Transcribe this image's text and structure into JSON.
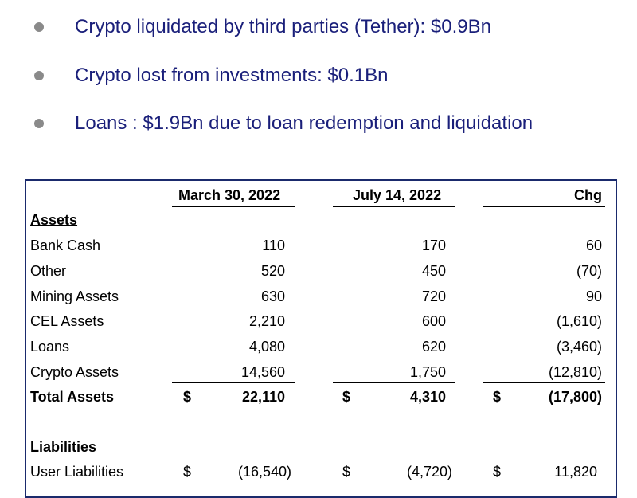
{
  "bullets": [
    {
      "text": "Crypto liquidated by third parties (Tether): $0.9Bn"
    },
    {
      "text": "Crypto lost from investments: $0.1Bn"
    },
    {
      "text": "Loans : $1.9Bn due to loan redemption and liquidation"
    }
  ],
  "table": {
    "headers": {
      "col1": "March 30, 2022",
      "col2": "July 14, 2022",
      "col3": "Chg"
    },
    "assets_label": "Assets",
    "rows": [
      {
        "label": "Bank Cash",
        "c1": "110",
        "c2": "170",
        "c3": "60"
      },
      {
        "label": "Other",
        "c1": "520",
        "c2": "450",
        "c3": "(70)"
      },
      {
        "label": "Mining Assets",
        "c1": "630",
        "c2": "720",
        "c3": "90"
      },
      {
        "label": "CEL Assets",
        "c1": "2,210",
        "c2": "600",
        "c3": "(1,610)"
      },
      {
        "label": "Loans",
        "c1": "4,080",
        "c2": "620",
        "c3": "(3,460)"
      },
      {
        "label": "Crypto Assets",
        "c1": "14,560",
        "c2": "1,750",
        "c3": "(12,810)"
      }
    ],
    "total": {
      "label": "Total Assets",
      "currency": "$",
      "c1": "22,110",
      "c2": "4,310",
      "c3": "(17,800)"
    },
    "liabilities_label": "Liabilities",
    "liab_rows": [
      {
        "label": "User Liabilities",
        "currency": "$",
        "c1": "(16,540)",
        "c2": "(4,720)",
        "c3": "11,820"
      }
    ]
  },
  "colors": {
    "bullet_text": "#1a1f7a",
    "bullet_dot": "#8a8a8a",
    "frame": "#1a2a6c"
  }
}
